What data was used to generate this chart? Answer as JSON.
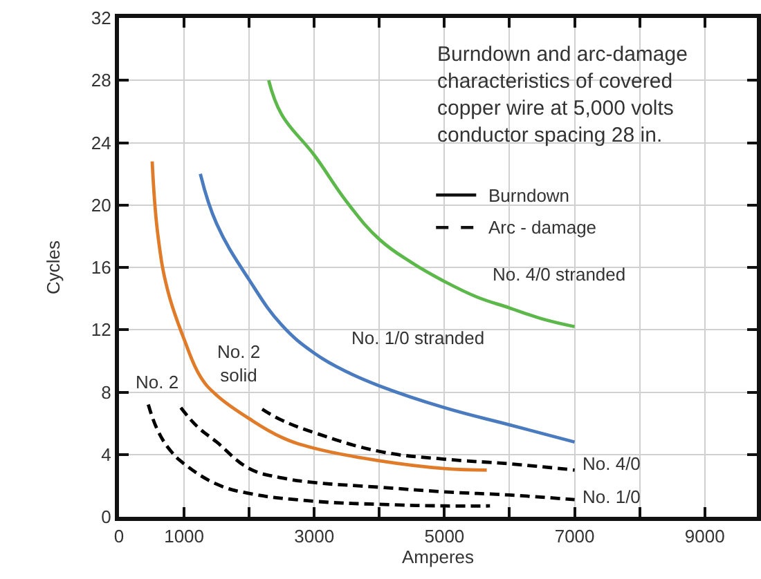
{
  "chart_data": {
    "type": "line",
    "title": "Burndown and arc-damage\ncharacteristics of covered\ncopper wire at 5,000 volts\nconductor spacing 28 in.",
    "xlabel": "Amperes",
    "ylabel": "Cycles",
    "xlim": [
      0,
      9800
    ],
    "ylim": [
      0,
      32
    ],
    "xticks": [
      0,
      1000,
      {
        "value": 2000,
        "label": null
      },
      3000,
      {
        "value": 4000,
        "label": null
      },
      5000,
      {
        "value": 6000,
        "label": null
      },
      7000,
      {
        "value": 8000,
        "label": null
      },
      9000
    ],
    "yticks": [
      0,
      4,
      8,
      12,
      16,
      20,
      24,
      28,
      32
    ],
    "grid": true,
    "marker": "none",
    "series": [
      {
        "name": "No. 4/0 stranded",
        "color": "#5cb84a",
        "line_style": "solid",
        "x": [
          2300,
          2500,
          3000,
          3500,
          4000,
          4500,
          5000,
          5500,
          6000,
          6500,
          7000
        ],
        "values": [
          28,
          25.8,
          23.2,
          20.2,
          17.8,
          16.3,
          15.1,
          14.1,
          13.4,
          12.7,
          12.2
        ]
      },
      {
        "name": "No. 1/0 stranded",
        "color": "#4a7bbf",
        "line_style": "solid",
        "x": [
          1250,
          1500,
          2000,
          2500,
          3000,
          3500,
          4000,
          5000,
          6000,
          7000
        ],
        "values": [
          22,
          18.8,
          15.2,
          12.3,
          10.5,
          9.3,
          8.4,
          7.0,
          5.9,
          4.8
        ]
      },
      {
        "name": "No. 2\nsolid",
        "color": "#e07b2a",
        "line_style": "solid",
        "x": [
          510,
          600,
          750,
          1000,
          1250,
          1500,
          2000,
          2500,
          3000,
          4000,
          5000,
          5650
        ],
        "values": [
          22.8,
          18,
          14.5,
          11.4,
          9.0,
          7.8,
          6.3,
          5.1,
          4.4,
          3.6,
          3.1,
          3.0
        ]
      },
      {
        "name": "No. 2",
        "color": "#000000",
        "line_style": "dashed",
        "x": [
          450,
          600,
          800,
          1000,
          1500,
          2000,
          3000,
          4000,
          5000,
          5700
        ],
        "values": [
          7.2,
          5.5,
          4.2,
          3.4,
          2.1,
          1.5,
          1.0,
          0.8,
          0.7,
          0.7
        ]
      },
      {
        "name": "No. 1/0",
        "color": "#000000",
        "line_style": "dashed",
        "x": [
          950,
          1200,
          1500,
          2000,
          2500,
          3000,
          4000,
          5000,
          6000,
          7000
        ],
        "values": [
          7.0,
          5.8,
          4.8,
          3.1,
          2.5,
          2.2,
          1.9,
          1.6,
          1.4,
          1.1
        ]
      },
      {
        "name": "No. 4/0",
        "color": "#000000",
        "line_style": "dashed",
        "x": [
          2200,
          2500,
          3000,
          4000,
          5000,
          6000,
          7000
        ],
        "values": [
          6.9,
          6.2,
          5.4,
          4.2,
          3.7,
          3.4,
          3.0
        ]
      }
    ],
    "annotations": [
      "Burndown",
      "Arc - damage"
    ]
  }
}
